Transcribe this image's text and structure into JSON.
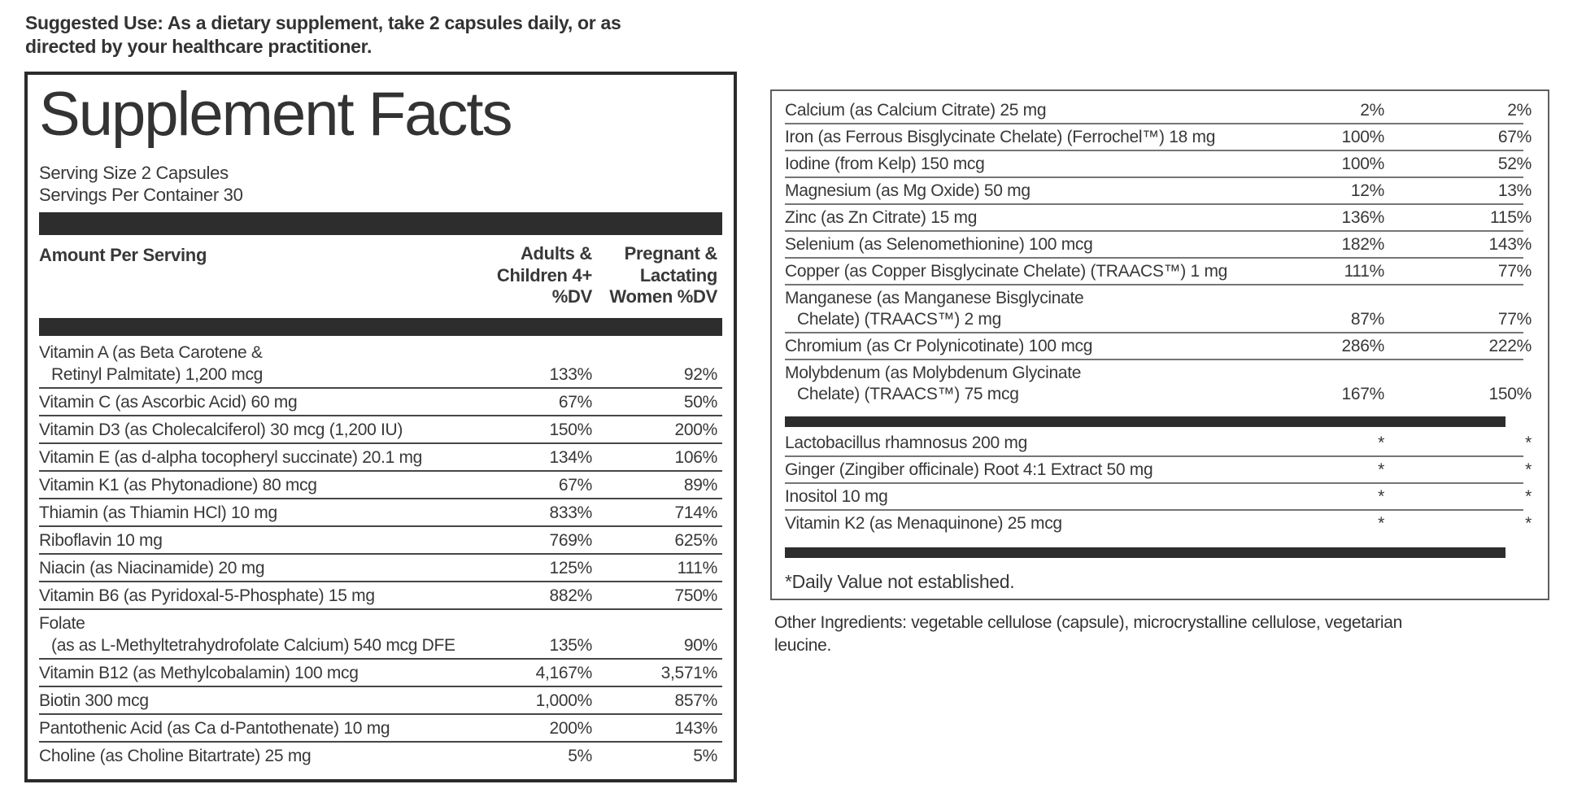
{
  "colors": {
    "text": "#383838",
    "bar": "#2d2d2d",
    "left_panel_border": "#2b2b2b",
    "right_panel_border": "#5f5f5f"
  },
  "suggested_use": "Suggested Use: As a dietary supplement, take 2 capsules daily, or as\ndirected by your healthcare practitioner.",
  "panel_left": {
    "title": "Supplement Facts",
    "serving_size": "Serving Size 2 Capsules",
    "servings_per_container": "Servings Per Container 30",
    "columns": {
      "amount": "Amount Per Serving",
      "adults": "Adults &\nChildren 4+\n%DV",
      "pregnant": "Pregnant &\nLactating\nWomen %DV"
    },
    "rows": [
      {
        "name": "Vitamin A (as Beta Carotene &",
        "name2": "Retinyl Palmitate) 1,200 mcg",
        "adults": "133%",
        "pregnant": "92%"
      },
      {
        "name": "Vitamin C (as Ascorbic Acid) 60 mg",
        "adults": "67%",
        "pregnant": "50%"
      },
      {
        "name": "Vitamin D3 (as Cholecalciferol) 30 mcg (1,200 IU)",
        "adults": "150%",
        "pregnant": "200%"
      },
      {
        "name": "Vitamin E (as d-alpha tocopheryl succinate) 20.1 mg",
        "adults": "134%",
        "pregnant": "106%"
      },
      {
        "name": "Vitamin K1 (as Phytonadione) 80 mcg",
        "adults": "67%",
        "pregnant": "89%"
      },
      {
        "name": "Thiamin (as Thiamin HCl) 10 mg",
        "adults": "833%",
        "pregnant": "714%"
      },
      {
        "name": "Riboflavin 10 mg",
        "adults": "769%",
        "pregnant": "625%"
      },
      {
        "name": "Niacin (as Niacinamide) 20 mg",
        "adults": "125%",
        "pregnant": "111%"
      },
      {
        "name": "Vitamin B6 (as Pyridoxal-5-Phosphate) 15 mg",
        "adults": "882%",
        "pregnant": "750%"
      },
      {
        "name": "Folate",
        "name2": "(as as L-Methyltetrahydrofolate Calcium) 540 mcg DFE",
        "adults": "135%",
        "pregnant": "90%"
      },
      {
        "name": "Vitamin B12 (as Methylcobalamin) 100 mcg",
        "adults": "4,167%",
        "pregnant": "3,571%"
      },
      {
        "name": "Biotin 300 mcg",
        "adults": "1,000%",
        "pregnant": "857%"
      },
      {
        "name": "Pantothenic Acid (as Ca d-Pantothenate) 10 mg",
        "adults": "200%",
        "pregnant": "143%"
      },
      {
        "name": "Choline (as Choline Bitartrate) 25 mg",
        "adults": "5%",
        "pregnant": "5%",
        "noline": true
      }
    ]
  },
  "panel_right": {
    "rows": [
      {
        "name": "Calcium (as Calcium Citrate) 25 mg",
        "adults": "2%",
        "pregnant": "2%"
      },
      {
        "name": "Iron (as Ferrous Bisglycinate Chelate) (Ferrochel™) 18 mg",
        "adults": "100%",
        "pregnant": "67%"
      },
      {
        "name": "Iodine (from Kelp) 150 mcg",
        "adults": "100%",
        "pregnant": "52%"
      },
      {
        "name": "Magnesium (as Mg Oxide) 50 mg",
        "adults": "12%",
        "pregnant": "13%"
      },
      {
        "name": "Zinc (as Zn Citrate) 15 mg",
        "adults": "136%",
        "pregnant": "115%"
      },
      {
        "name": "Selenium (as Selenomethionine) 100 mcg",
        "adults": "182%",
        "pregnant": "143%"
      },
      {
        "name": "Copper (as Copper Bisglycinate Chelate) (TRAACS™) 1 mg",
        "adults": "111%",
        "pregnant": "77%"
      },
      {
        "name": "Manganese (as Manganese Bisglycinate",
        "name2": "Chelate) (TRAACS™) 2 mg",
        "adults": "87%",
        "pregnant": "77%"
      },
      {
        "name": "Chromium (as Cr Polynicotinate) 100 mcg",
        "adults": "286%",
        "pregnant": "222%"
      },
      {
        "name": "Molybdenum (as Molybdenum Glycinate",
        "name2": "Chelate) (TRAACS™) 75 mcg",
        "adults": "167%",
        "pregnant": "150%",
        "noline": true
      }
    ],
    "extra_rows": [
      {
        "name": "Lactobacillus rhamnosus 200 mg",
        "adults": "*",
        "pregnant": "*"
      },
      {
        "name": "Ginger (Zingiber officinale) Root 4:1 Extract 50 mg",
        "adults": "*",
        "pregnant": "*"
      },
      {
        "name": "Inositol 10 mg",
        "adults": "*",
        "pregnant": "*"
      },
      {
        "name": "Vitamin K2 (as Menaquinone) 25 mcg",
        "adults": "*",
        "pregnant": "*",
        "noline": true
      }
    ],
    "footnote": "*Daily Value not established."
  },
  "other_ingredients": "Other Ingredients: vegetable cellulose (capsule), microcrystalline cellulose, vegetarian\nleucine."
}
